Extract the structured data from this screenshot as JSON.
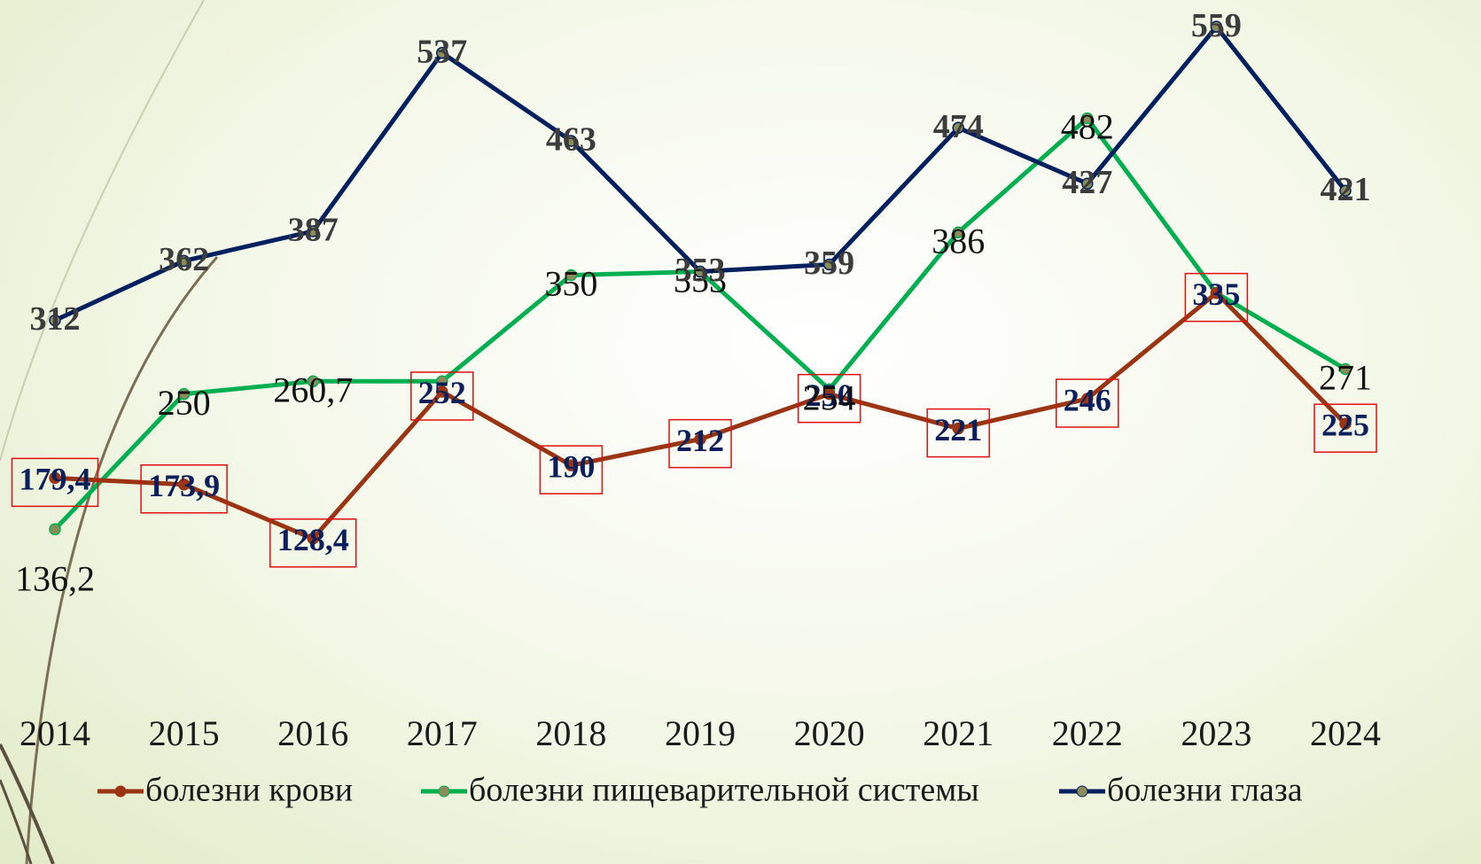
{
  "chart_data": {
    "type": "line",
    "categories": [
      "2014",
      "2015",
      "2016",
      "2017",
      "2018",
      "2019",
      "2020",
      "2021",
      "2022",
      "2023",
      "2024"
    ],
    "ylim": [
      0,
      580
    ],
    "legend": "bottom",
    "series": [
      {
        "name": "болезни крови",
        "color": "#9b3413",
        "label_style": "boxed",
        "values": [
          179.4,
          173.9,
          128.4,
          252,
          190,
          212,
          250,
          221,
          246,
          335,
          225
        ],
        "value_labels": [
          "179,4",
          "173,9",
          "128,4",
          "252",
          "190",
          "212",
          "250",
          "221",
          "246",
          "335",
          "225"
        ]
      },
      {
        "name": "болезни пищеварительной системы",
        "color": "#00b050",
        "label_style": "plain",
        "values": [
          136.2,
          250,
          260.7,
          260.7,
          350,
          353,
          254,
          386,
          482,
          335,
          271
        ],
        "value_labels": [
          "136,2",
          "250",
          "260,7",
          null,
          "350",
          "353",
          "254",
          "386",
          "482",
          null,
          "271"
        ]
      },
      {
        "name": "болезни глаза",
        "color": "#002060",
        "label_style": "bold",
        "values": [
          312,
          362,
          387,
          537,
          463,
          353,
          359,
          474,
          427,
          559,
          421
        ],
        "value_labels": [
          "312",
          "362",
          "387",
          "537",
          "463",
          "353",
          "359",
          "474",
          "427",
          "559",
          "421"
        ]
      }
    ]
  }
}
